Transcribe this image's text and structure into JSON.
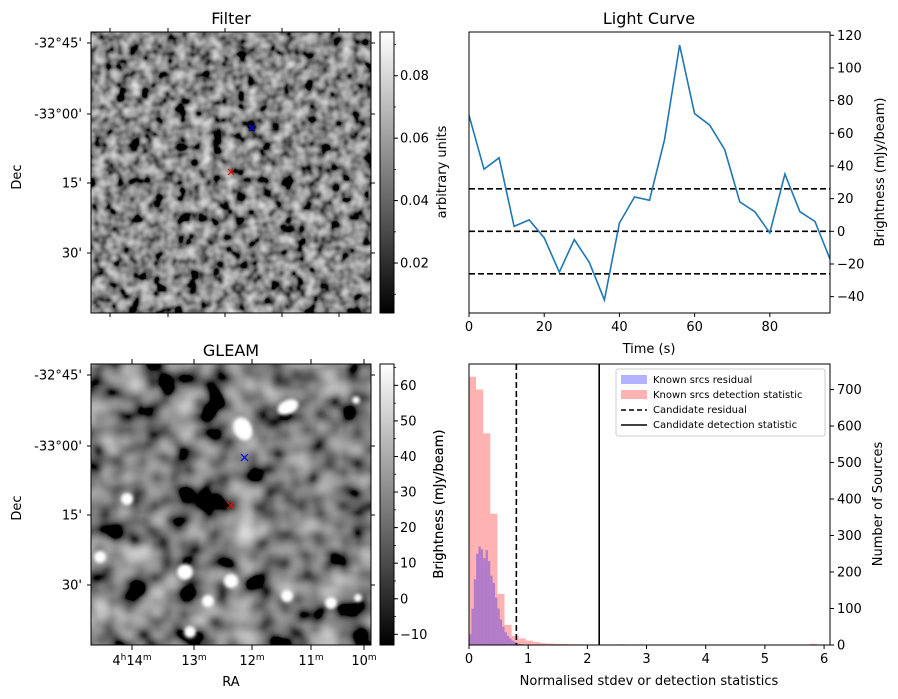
{
  "panels": {
    "filter": {
      "title": "Filter",
      "ylabel": "Dec",
      "dec_ticks": [
        "-32°45'",
        "-33°00'",
        "15'",
        "30'"
      ],
      "colorbar": {
        "label": "arbitrary units",
        "ticks": [
          "0.02",
          "0.04",
          "0.06",
          "0.08"
        ],
        "range": [
          0.004,
          0.094
        ]
      }
    },
    "gleam": {
      "title": "GLEAM",
      "ylabel": "Dec",
      "xlabel": "RA",
      "dec_ticks": [
        "-32°45'",
        "-33°00'",
        "15'",
        "30'"
      ],
      "ra_ticks": [
        {
          "main": "4",
          "sup1": "h",
          "num": "14",
          "sup2": "m"
        },
        {
          "main": "13",
          "sup2": "m"
        },
        {
          "main": "12",
          "sup2": "m"
        },
        {
          "main": "11",
          "sup2": "m"
        },
        {
          "main": "10",
          "sup2": "m"
        }
      ],
      "colorbar": {
        "label": "Brightness (mJy/beam)",
        "ticks": [
          "−10",
          "0",
          "10",
          "20",
          "30",
          "40",
          "50",
          "60"
        ],
        "range": [
          -13,
          66
        ]
      }
    },
    "hist": {
      "left_ylabel": "Brightness (mJy/beam)"
    }
  },
  "chart_data": [
    {
      "type": "line",
      "title": "Light Curve",
      "xlabel": "Time (s)",
      "ylabel": "Brightness (mJy/beam)",
      "xlim": [
        0,
        96
      ],
      "ylim": [
        -50,
        122
      ],
      "x_ticks": [
        0,
        20,
        40,
        60,
        80
      ],
      "y_ticks": [
        -40,
        -20,
        0,
        20,
        40,
        60,
        80,
        100,
        120
      ],
      "x": [
        0,
        4,
        8,
        12,
        16,
        20,
        24,
        28,
        32,
        36,
        40,
        44,
        48,
        52,
        56,
        60,
        64,
        68,
        72,
        76,
        80,
        84,
        88,
        92,
        96
      ],
      "y": [
        71,
        38,
        45,
        3,
        7,
        -4,
        -25,
        -5,
        -19,
        -42,
        5,
        21,
        19,
        56,
        114,
        72,
        65,
        50,
        18,
        12,
        -1,
        35,
        12,
        6,
        -17
      ],
      "hlines": [
        26,
        0,
        -26
      ],
      "color": "#1f77b4"
    },
    {
      "type": "bar",
      "xlabel": "Normalised stdev or detection statistics",
      "ylabel": "Number of Sources",
      "xlim": [
        0,
        6.1
      ],
      "ylim": [
        0,
        770
      ],
      "x_ticks": [
        0,
        1,
        2,
        3,
        4,
        5,
        6
      ],
      "y_ticks": [
        0,
        100,
        200,
        300,
        400,
        500,
        600,
        700
      ],
      "series": [
        {
          "name": "Known srcs residual",
          "color": "#0000ff",
          "alpha": 0.3,
          "bin_start": 0.0,
          "bin_width": 0.04,
          "values": [
            30,
            100,
            180,
            250,
            270,
            262,
            238,
            260,
            230,
            190,
            170,
            130,
            100,
            70,
            50,
            35,
            25,
            18,
            12,
            8,
            5,
            3,
            2,
            1,
            1
          ]
        },
        {
          "name": "Known srcs detection statistic",
          "color": "#ff0000",
          "alpha": 0.3,
          "bin_start": 0.0,
          "bin_width": 0.12,
          "values": [
            735,
            700,
            580,
            360,
            140,
            55,
            25,
            18,
            12,
            8,
            5,
            4,
            3,
            3,
            2,
            2,
            1,
            1,
            1,
            1,
            0,
            2,
            1,
            1,
            0,
            0,
            0,
            0,
            0,
            0,
            0,
            0,
            0,
            0,
            0,
            0,
            0,
            0,
            0,
            0,
            0,
            0,
            0,
            0,
            0,
            0,
            0,
            0,
            3
          ]
        }
      ],
      "vlines": [
        {
          "name": "Candidate residual",
          "x": 0.8,
          "style": "dashed"
        },
        {
          "name": "Candidate detection statistic",
          "x": 2.2,
          "style": "solid"
        }
      ],
      "legend": "top-right"
    }
  ]
}
